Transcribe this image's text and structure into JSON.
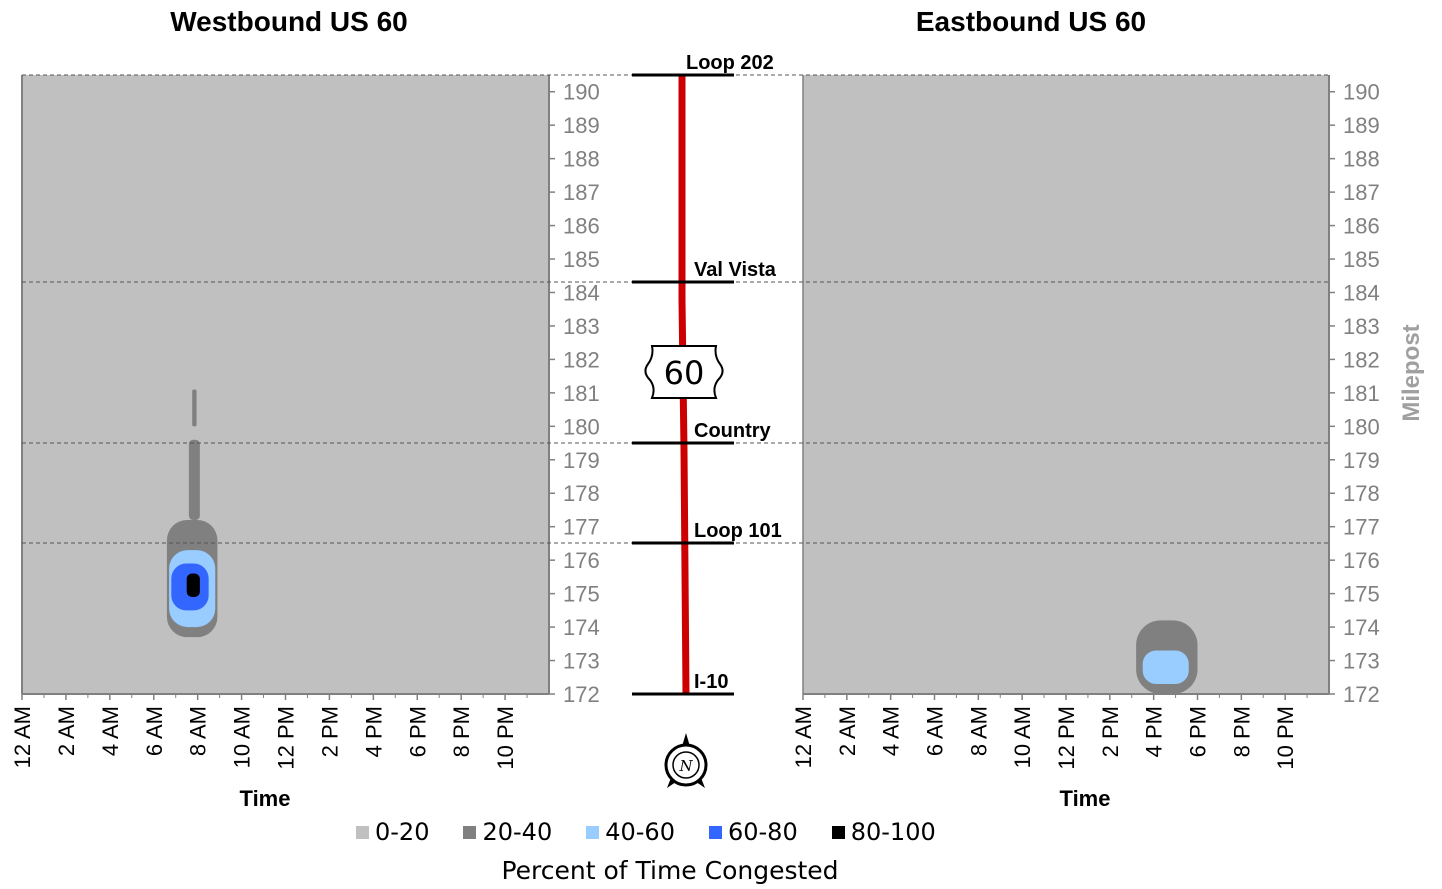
{
  "titles": {
    "left": "Westbound US 60",
    "right": "Eastbound US 60"
  },
  "route_shield": "60",
  "compass_letter": "N",
  "landmarks": [
    {
      "label": "Loop 202",
      "milepost": 190.5
    },
    {
      "label": "Val Vista",
      "milepost": 184.3
    },
    {
      "label": "Country",
      "milepost": 179.5
    },
    {
      "label": "Loop 101",
      "milepost": 176.5
    },
    {
      "label": "I-10",
      "milepost": 172.0
    }
  ],
  "legend": {
    "title": "Percent of Time Congested",
    "items": [
      {
        "label": "0-20",
        "color": "#c0c0c0"
      },
      {
        "label": "20-40",
        "color": "#808080"
      },
      {
        "label": "40-60",
        "color": "#99ccff"
      },
      {
        "label": "60-80",
        "color": "#3366ff"
      },
      {
        "label": "80-100",
        "color": "#000000"
      }
    ]
  },
  "chart_data": [
    {
      "type": "heatmap",
      "title": "Westbound US 60",
      "xlabel": "Time",
      "ylabel": "",
      "x_ticks": [
        "12 AM",
        "2 AM",
        "4 AM",
        "6 AM",
        "8 AM",
        "10 AM",
        "12 PM",
        "2 PM",
        "4 PM",
        "6 PM",
        "8 PM",
        "10 PM"
      ],
      "xlim_hours": [
        0,
        24
      ],
      "y_ticks": [
        190,
        189,
        188,
        187,
        186,
        185,
        184,
        183,
        182,
        181,
        180,
        179,
        178,
        177,
        176,
        175,
        174,
        173,
        172
      ],
      "ylim": [
        172,
        190.5
      ],
      "background_bin": "0-20",
      "regions": [
        {
          "bin": "20-40",
          "start_hour": 6.6,
          "end_hour": 8.9,
          "start_mile": 173.7,
          "end_mile": 177.2
        },
        {
          "bin": "20-40",
          "start_hour": 7.6,
          "end_hour": 8.1,
          "start_mile": 177.2,
          "end_mile": 179.6
        },
        {
          "bin": "20-40",
          "start_hour": 7.75,
          "end_hour": 7.95,
          "start_mile": 180.0,
          "end_mile": 181.1
        },
        {
          "bin": "40-60",
          "start_hour": 6.7,
          "end_hour": 8.8,
          "start_mile": 174.0,
          "end_mile": 176.3
        },
        {
          "bin": "60-80",
          "start_hour": 6.8,
          "end_hour": 8.5,
          "start_mile": 174.5,
          "end_mile": 175.9
        },
        {
          "bin": "80-100",
          "start_hour": 7.5,
          "end_hour": 8.1,
          "start_mile": 174.9,
          "end_mile": 175.6
        }
      ]
    },
    {
      "type": "heatmap",
      "title": "Eastbound US 60",
      "xlabel": "Time",
      "ylabel": "Milepost",
      "x_ticks": [
        "12 AM",
        "2 AM",
        "4 AM",
        "6 AM",
        "8 AM",
        "10 AM",
        "12 PM",
        "2 PM",
        "4 PM",
        "6 PM",
        "8 PM",
        "10 PM"
      ],
      "xlim_hours": [
        0,
        24
      ],
      "y_ticks": [
        190,
        189,
        188,
        187,
        186,
        185,
        184,
        183,
        182,
        181,
        180,
        179,
        178,
        177,
        176,
        175,
        174,
        173,
        172
      ],
      "ylim": [
        172,
        190.5
      ],
      "background_bin": "0-20",
      "regions": [
        {
          "bin": "20-40",
          "start_hour": 15.2,
          "end_hour": 18.0,
          "start_mile": 172.0,
          "end_mile": 174.2
        },
        {
          "bin": "40-60",
          "start_hour": 15.5,
          "end_hour": 17.6,
          "start_mile": 172.3,
          "end_mile": 173.3
        }
      ]
    }
  ]
}
